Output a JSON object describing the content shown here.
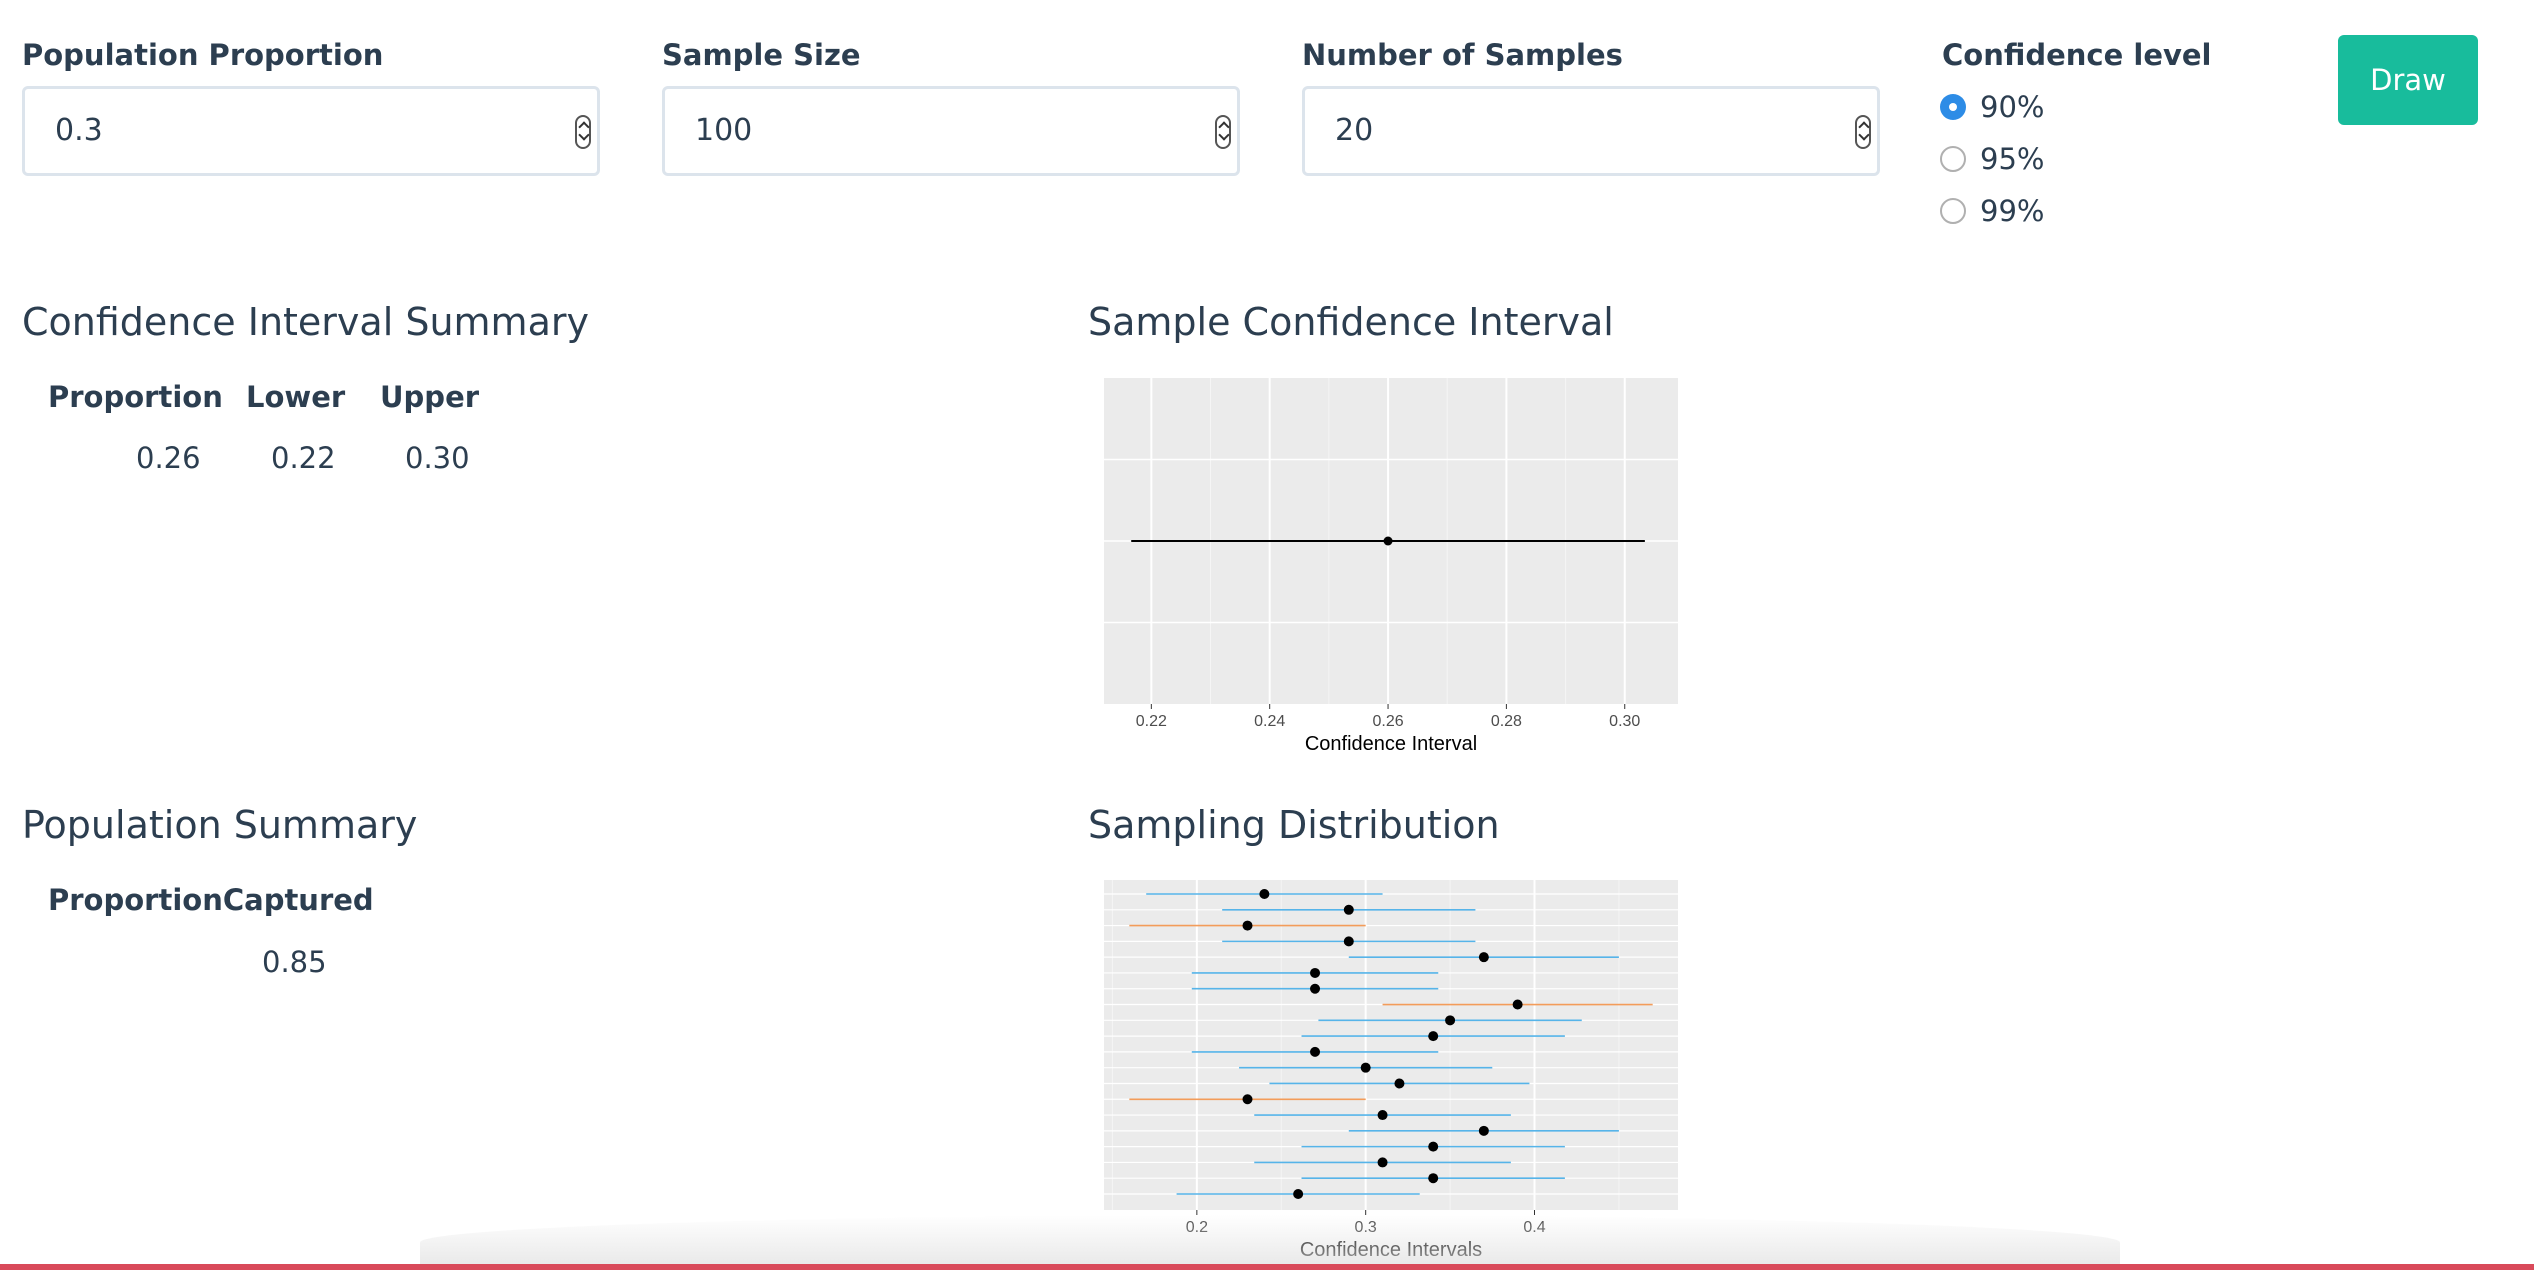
{
  "inputs": {
    "population_proportion": {
      "label": "Population Proportion",
      "value": "0.3"
    },
    "sample_size": {
      "label": "Sample Size",
      "value": "100"
    },
    "number_of_samples": {
      "label": "Number of Samples",
      "value": "20"
    }
  },
  "confidence": {
    "label": "Confidence level",
    "options": [
      "90%",
      "95%",
      "99%"
    ],
    "selected": "90%"
  },
  "draw_button": {
    "label": "Draw"
  },
  "ci_summary": {
    "title": "Confidence Interval Summary",
    "headers": [
      "Proportion",
      "Lower",
      "Upper"
    ],
    "row": [
      "0.26",
      "0.22",
      "0.30"
    ]
  },
  "population_summary": {
    "title": "Population Summary",
    "header": "ProportionCaptured",
    "value": "0.85"
  },
  "sample_ci_plot": {
    "title": "Sample Confidence Interval"
  },
  "sampling_plot": {
    "title": "Sampling Distribution"
  },
  "colors": {
    "accent": "#18bc9c",
    "radio_selected": "#2d8ce6",
    "captured": "#56b4e9",
    "missed": "#f39c5a",
    "panel": "#ebebeb"
  },
  "chart_data": [
    {
      "type": "scatter",
      "title": "",
      "xlabel": "Confidence Interval",
      "ylabel": "",
      "xlim": [
        0.212,
        0.309
      ],
      "x_ticks": [
        "0.22",
        "0.24",
        "0.26",
        "0.28",
        "0.30"
      ],
      "grid": true,
      "intervals": [
        {
          "estimate": 0.26,
          "lower": 0.2166,
          "upper": 0.3034
        }
      ]
    },
    {
      "type": "scatter",
      "title": "",
      "xlabel": "Confidence Intervals",
      "ylabel": "",
      "xlim": [
        0.145,
        0.485
      ],
      "x_ticks": [
        "0.2",
        "0.3",
        "0.4"
      ],
      "grid": true,
      "intervals": [
        {
          "estimate": 0.24,
          "lower": 0.17,
          "upper": 0.31,
          "captured": true
        },
        {
          "estimate": 0.29,
          "lower": 0.215,
          "upper": 0.365,
          "captured": true
        },
        {
          "estimate": 0.23,
          "lower": 0.16,
          "upper": 0.3,
          "captured": false
        },
        {
          "estimate": 0.29,
          "lower": 0.215,
          "upper": 0.365,
          "captured": true
        },
        {
          "estimate": 0.37,
          "lower": 0.29,
          "upper": 0.45,
          "captured": true
        },
        {
          "estimate": 0.27,
          "lower": 0.197,
          "upper": 0.343,
          "captured": true
        },
        {
          "estimate": 0.27,
          "lower": 0.197,
          "upper": 0.343,
          "captured": true
        },
        {
          "estimate": 0.39,
          "lower": 0.31,
          "upper": 0.47,
          "captured": false
        },
        {
          "estimate": 0.35,
          "lower": 0.272,
          "upper": 0.428,
          "captured": true
        },
        {
          "estimate": 0.34,
          "lower": 0.262,
          "upper": 0.418,
          "captured": true
        },
        {
          "estimate": 0.27,
          "lower": 0.197,
          "upper": 0.343,
          "captured": true
        },
        {
          "estimate": 0.3,
          "lower": 0.225,
          "upper": 0.375,
          "captured": true
        },
        {
          "estimate": 0.32,
          "lower": 0.243,
          "upper": 0.397,
          "captured": true
        },
        {
          "estimate": 0.23,
          "lower": 0.16,
          "upper": 0.3,
          "captured": false
        },
        {
          "estimate": 0.31,
          "lower": 0.234,
          "upper": 0.386,
          "captured": true
        },
        {
          "estimate": 0.37,
          "lower": 0.29,
          "upper": 0.45,
          "captured": true
        },
        {
          "estimate": 0.34,
          "lower": 0.262,
          "upper": 0.418,
          "captured": true
        },
        {
          "estimate": 0.31,
          "lower": 0.234,
          "upper": 0.386,
          "captured": true
        },
        {
          "estimate": 0.34,
          "lower": 0.262,
          "upper": 0.418,
          "captured": true
        },
        {
          "estimate": 0.26,
          "lower": 0.188,
          "upper": 0.332,
          "captured": true
        }
      ]
    }
  ]
}
